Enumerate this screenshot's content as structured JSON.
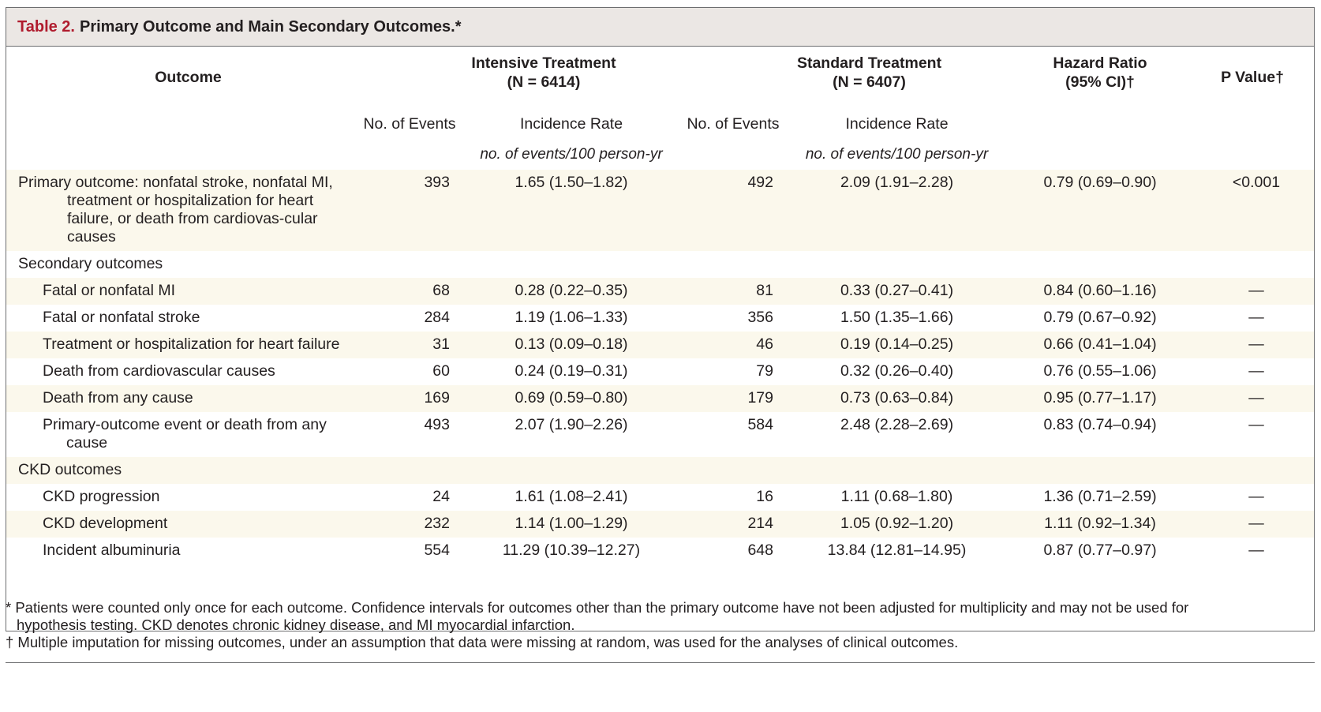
{
  "table": {
    "title_prefix": "Table 2.",
    "title": "Primary Outcome and Main Secondary Outcomes.*",
    "headers": {
      "outcome": "Outcome",
      "intensive": "Intensive Treatment",
      "intensive_n": "(N = 6414)",
      "standard": "Standard Treatment",
      "standard_n": "(N = 6407)",
      "hr": "Hazard Ratio",
      "hr_ci": "(95% CI)†",
      "p": "P Value†",
      "no_events": "No. of Events",
      "incidence": "Incidence Rate",
      "units": "no. of events/100 person-yr"
    },
    "rows": [
      {
        "label": "Primary outcome: nonfatal stroke, nonfatal MI, treatment or hospitalization for heart failure, or death from cardiovas-cular causes",
        "i_events": "393",
        "i_rate": "1.65 (1.50–1.82)",
        "s_events": "492",
        "s_rate": "2.09 (1.91–2.28)",
        "hr": "0.79 (0.69–0.90)",
        "p": "<0.001"
      },
      {
        "label": "Secondary outcomes"
      },
      {
        "label": "Fatal or nonfatal MI",
        "i_events": "68",
        "i_rate": "0.28 (0.22–0.35)",
        "s_events": "81",
        "s_rate": "0.33 (0.27–0.41)",
        "hr": "0.84 (0.60–1.16)",
        "p": "—"
      },
      {
        "label": "Fatal or nonfatal stroke",
        "i_events": "284",
        "i_rate": "1.19 (1.06–1.33)",
        "s_events": "356",
        "s_rate": "1.50 (1.35–1.66)",
        "hr": "0.79 (0.67–0.92)",
        "p": "—"
      },
      {
        "label": "Treatment or hospitalization for heart failure",
        "i_events": "31",
        "i_rate": "0.13 (0.09–0.18)",
        "s_events": "46",
        "s_rate": "0.19 (0.14–0.25)",
        "hr": "0.66 (0.41–1.04)",
        "p": "—"
      },
      {
        "label": "Death from cardiovascular causes",
        "i_events": "60",
        "i_rate": "0.24 (0.19–0.31)",
        "s_events": "79",
        "s_rate": "0.32 (0.26–0.40)",
        "hr": "0.76 (0.55–1.06)",
        "p": "—"
      },
      {
        "label": "Death from any cause",
        "i_events": "169",
        "i_rate": "0.69 (0.59–0.80)",
        "s_events": "179",
        "s_rate": "0.73 (0.63–0.84)",
        "hr": "0.95 (0.77–1.17)",
        "p": "—"
      },
      {
        "label": "Primary-outcome event or death from any cause",
        "i_events": "493",
        "i_rate": "2.07 (1.90–2.26)",
        "s_events": "584",
        "s_rate": "2.48 (2.28–2.69)",
        "hr": "0.83 (0.74–0.94)",
        "p": "—"
      },
      {
        "label": "CKD outcomes"
      },
      {
        "label": "CKD progression",
        "i_events": "24",
        "i_rate": "1.61 (1.08–2.41)",
        "s_events": "16",
        "s_rate": "1.11 (0.68–1.80)",
        "hr": "1.36 (0.71–2.59)",
        "p": "—"
      },
      {
        "label": "CKD development",
        "i_events": "232",
        "i_rate": "1.14 (1.00–1.29)",
        "s_events": "214",
        "s_rate": "1.05 (0.92–1.20)",
        "hr": "1.11 (0.92–1.34)",
        "p": "—"
      },
      {
        "label": "Incident albuminuria",
        "i_events": "554",
        "i_rate": "11.29 (10.39–12.27)",
        "s_events": "648",
        "s_rate": "13.84 (12.81–14.95)",
        "hr": "0.87 (0.77–0.97)",
        "p": "—"
      }
    ],
    "footnotes": [
      "* Patients were counted only once for each outcome. Confidence intervals for outcomes other than the primary outcome have not been adjusted for multiplicity and may not be used for hypothesis testing. CKD denotes chronic kidney disease, and MI myocardial infarction.",
      "† Multiple imputation for missing outcomes, under an assumption that data were missing at random, was used for the analyses of clinical outcomes."
    ]
  }
}
